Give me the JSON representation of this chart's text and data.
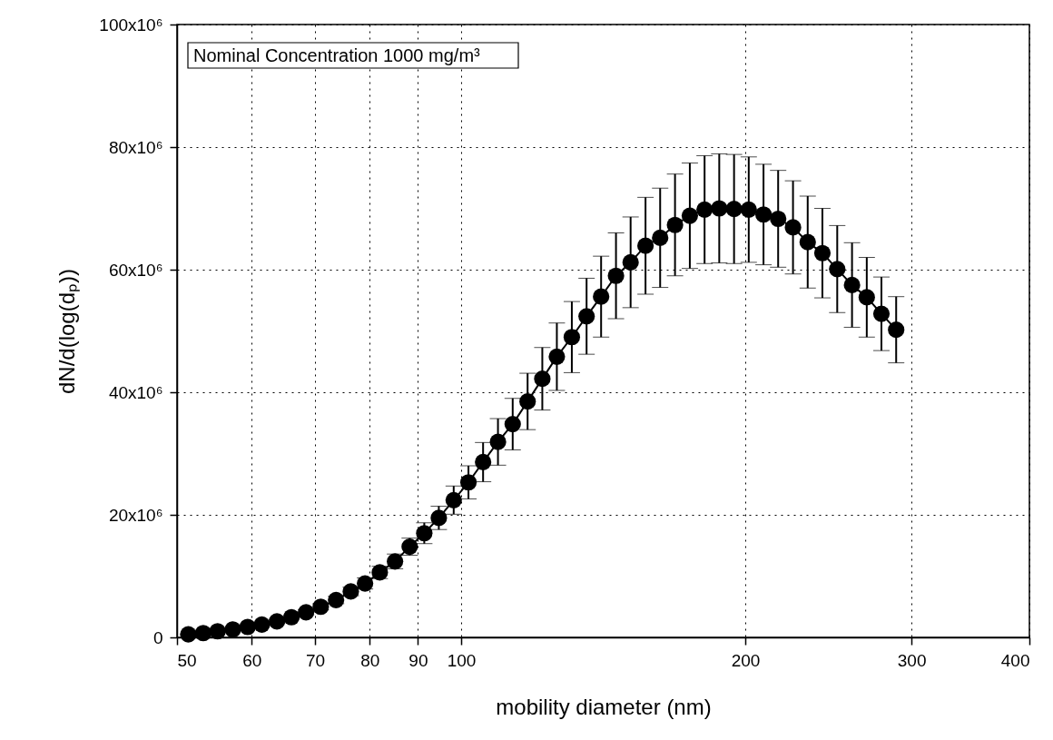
{
  "chart_data": {
    "type": "line",
    "xlabel": "mobility diameter (nm)",
    "ylabel": "dN/d(log(dₚ))",
    "annotations": [
      "Nominal Concentration 1000 mg/m³"
    ],
    "x": [
      51.4,
      53.3,
      55.2,
      57.3,
      59.4,
      61.5,
      63.8,
      66.1,
      68.5,
      71.0,
      73.7,
      76.4,
      79.1,
      82.0,
      85.1,
      88.2,
      91.4,
      94.7,
      98.2,
      101.8,
      105.5,
      109.4,
      113.4,
      117.6,
      121.9,
      126.3,
      131.0,
      135.8,
      140.7,
      145.9,
      151.2,
      156.8,
      162.5,
      168.5,
      174.7,
      181.1,
      187.7,
      194.6,
      201.7,
      209.1,
      216.7,
      224.7,
      232.9,
      241.4,
      250.3,
      259.5,
      269.0,
      278.8,
      289.0
    ],
    "series": [
      {
        "color": "#000000",
        "values": [
          500000,
          700000,
          1000000,
          1300000,
          1700000,
          2100000,
          2600000,
          3300000,
          4100000,
          5000000,
          6100000,
          7500000,
          8800000,
          10600000,
          12400000,
          14800000,
          17000000,
          19500000,
          22400000,
          25300000,
          28600000,
          31900000,
          34800000,
          38500000,
          42200000,
          45800000,
          49000000,
          52400000,
          55600000,
          59000000,
          61200000,
          63900000,
          65200000,
          67300000,
          68800000,
          69800000,
          70000000,
          69900000,
          69800000,
          69000000,
          68300000,
          66900000,
          64500000,
          62700000,
          60100000,
          57500000,
          55500000,
          52800000,
          50200000
        ],
        "errors": [
          100000,
          100000,
          100000,
          100000,
          200000,
          200000,
          300000,
          300000,
          400000,
          500000,
          600000,
          700000,
          900000,
          1000000,
          1200000,
          1400000,
          1700000,
          1900000,
          2300000,
          2700000,
          3200000,
          3800000,
          4200000,
          4600000,
          5100000,
          5500000,
          5800000,
          6200000,
          6600000,
          7000000,
          7400000,
          7900000,
          8100000,
          8300000,
          8600000,
          8800000,
          8900000,
          8900000,
          8600000,
          8200000,
          7900000,
          7600000,
          7500000,
          7300000,
          7100000,
          6900000,
          6500000,
          6000000,
          5400000
        ]
      }
    ],
    "xlim": [
      50,
      400
    ],
    "xticks": [
      50,
      60,
      70,
      80,
      90,
      100,
      200,
      300,
      400
    ],
    "ylim": [
      0,
      100000000
    ],
    "yticks": [
      0,
      {
        "value": 20000000,
        "label": "20x10⁶"
      },
      {
        "value": 40000000,
        "label": "40x10⁶"
      },
      {
        "value": 60000000,
        "label": "60x10⁶"
      },
      {
        "value": 80000000,
        "label": "80x10⁶"
      },
      {
        "value": 100000000,
        "label": "100x10⁶"
      }
    ],
    "log": "x",
    "grid": true,
    "marker": "circle",
    "line_style": "solid"
  }
}
